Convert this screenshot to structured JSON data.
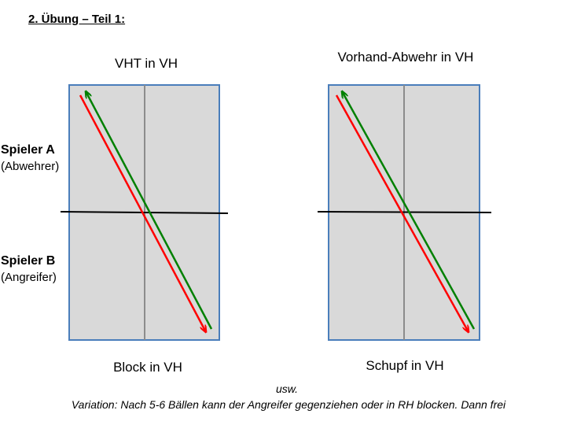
{
  "heading": "2. Übung – Teil 1:",
  "players": {
    "a": {
      "name": "Spieler A",
      "role": "(Abwehrer)"
    },
    "b": {
      "name": "Spieler B",
      "role": "(Angreifer)"
    }
  },
  "diagrams": [
    {
      "top_label": "VHT in VH",
      "bottom_label": "Block in VH"
    },
    {
      "top_label": "Vorhand-Abwehr in VH",
      "bottom_label": "Schupf in VH"
    }
  ],
  "footer": {
    "usw": "usw.",
    "variation": "Variation: Nach 5-6 Bällen kann der Angreifer gegenziehen oder in RH blocken. Dann frei"
  },
  "colors": {
    "table_fill": "#d9d9d9",
    "table_border": "#4a7ebb",
    "center_line": "#8c8c8c",
    "net": "#000000",
    "arrow_red": "#ff0000",
    "arrow_green": "#008000"
  }
}
